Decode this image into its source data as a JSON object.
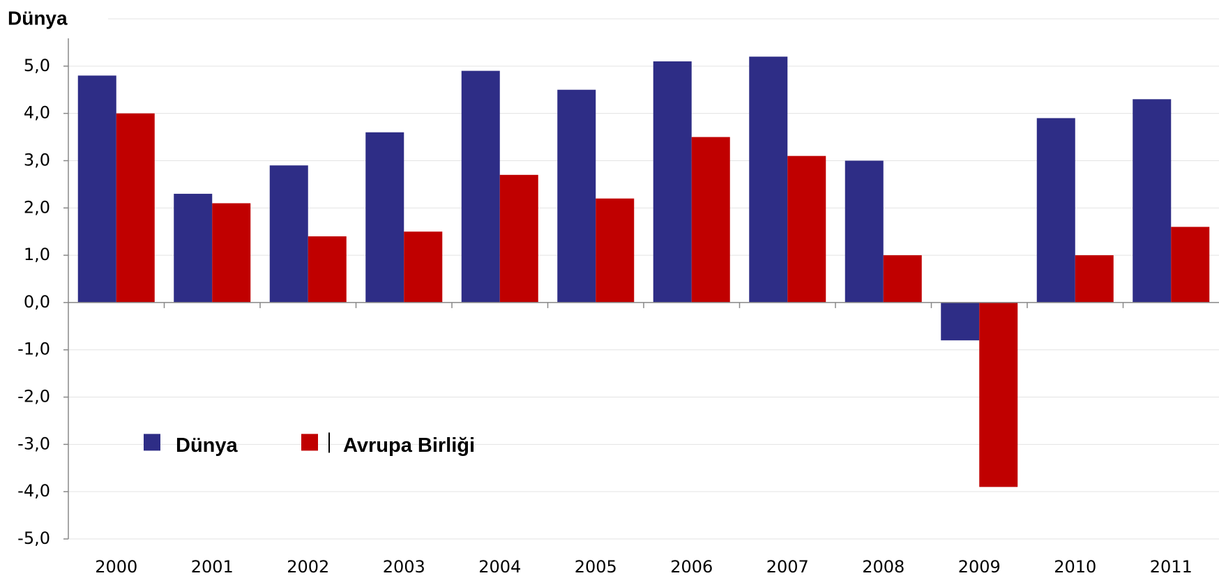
{
  "chart_data": {
    "type": "bar",
    "title": "Dünya",
    "categories": [
      "2000",
      "2001",
      "2002",
      "2003",
      "2004",
      "2005",
      "2006",
      "2007",
      "2008",
      "2009",
      "2010",
      "2011"
    ],
    "series": [
      {
        "name": "Dünya",
        "color": "#2e2d86",
        "values": [
          4.8,
          2.3,
          2.9,
          3.6,
          4.9,
          4.5,
          5.1,
          5.2,
          3.0,
          -0.8,
          3.9,
          4.3
        ]
      },
      {
        "name": "Avrupa Birliği",
        "color": "#c00000",
        "values": [
          4.0,
          2.1,
          1.4,
          1.5,
          2.7,
          2.2,
          3.5,
          3.1,
          1.0,
          -3.9,
          1.0,
          1.6
        ]
      }
    ],
    "ylim": [
      -5,
      6
    ],
    "yticks": [
      {
        "value": -5,
        "label": "-5,0"
      },
      {
        "value": -4,
        "label": "-4,0"
      },
      {
        "value": -3,
        "label": "-3,0"
      },
      {
        "value": -2,
        "label": "-2,0"
      },
      {
        "value": -1,
        "label": "-1,0"
      },
      {
        "value": 0,
        "label": "0,0"
      },
      {
        "value": 1,
        "label": "1,0"
      },
      {
        "value": 2,
        "label": "2,0"
      },
      {
        "value": 3,
        "label": "3,0"
      },
      {
        "value": 4,
        "label": "4,0"
      },
      {
        "value": 5,
        "label": "5,0"
      }
    ],
    "grid": true,
    "legend": "lower left"
  }
}
